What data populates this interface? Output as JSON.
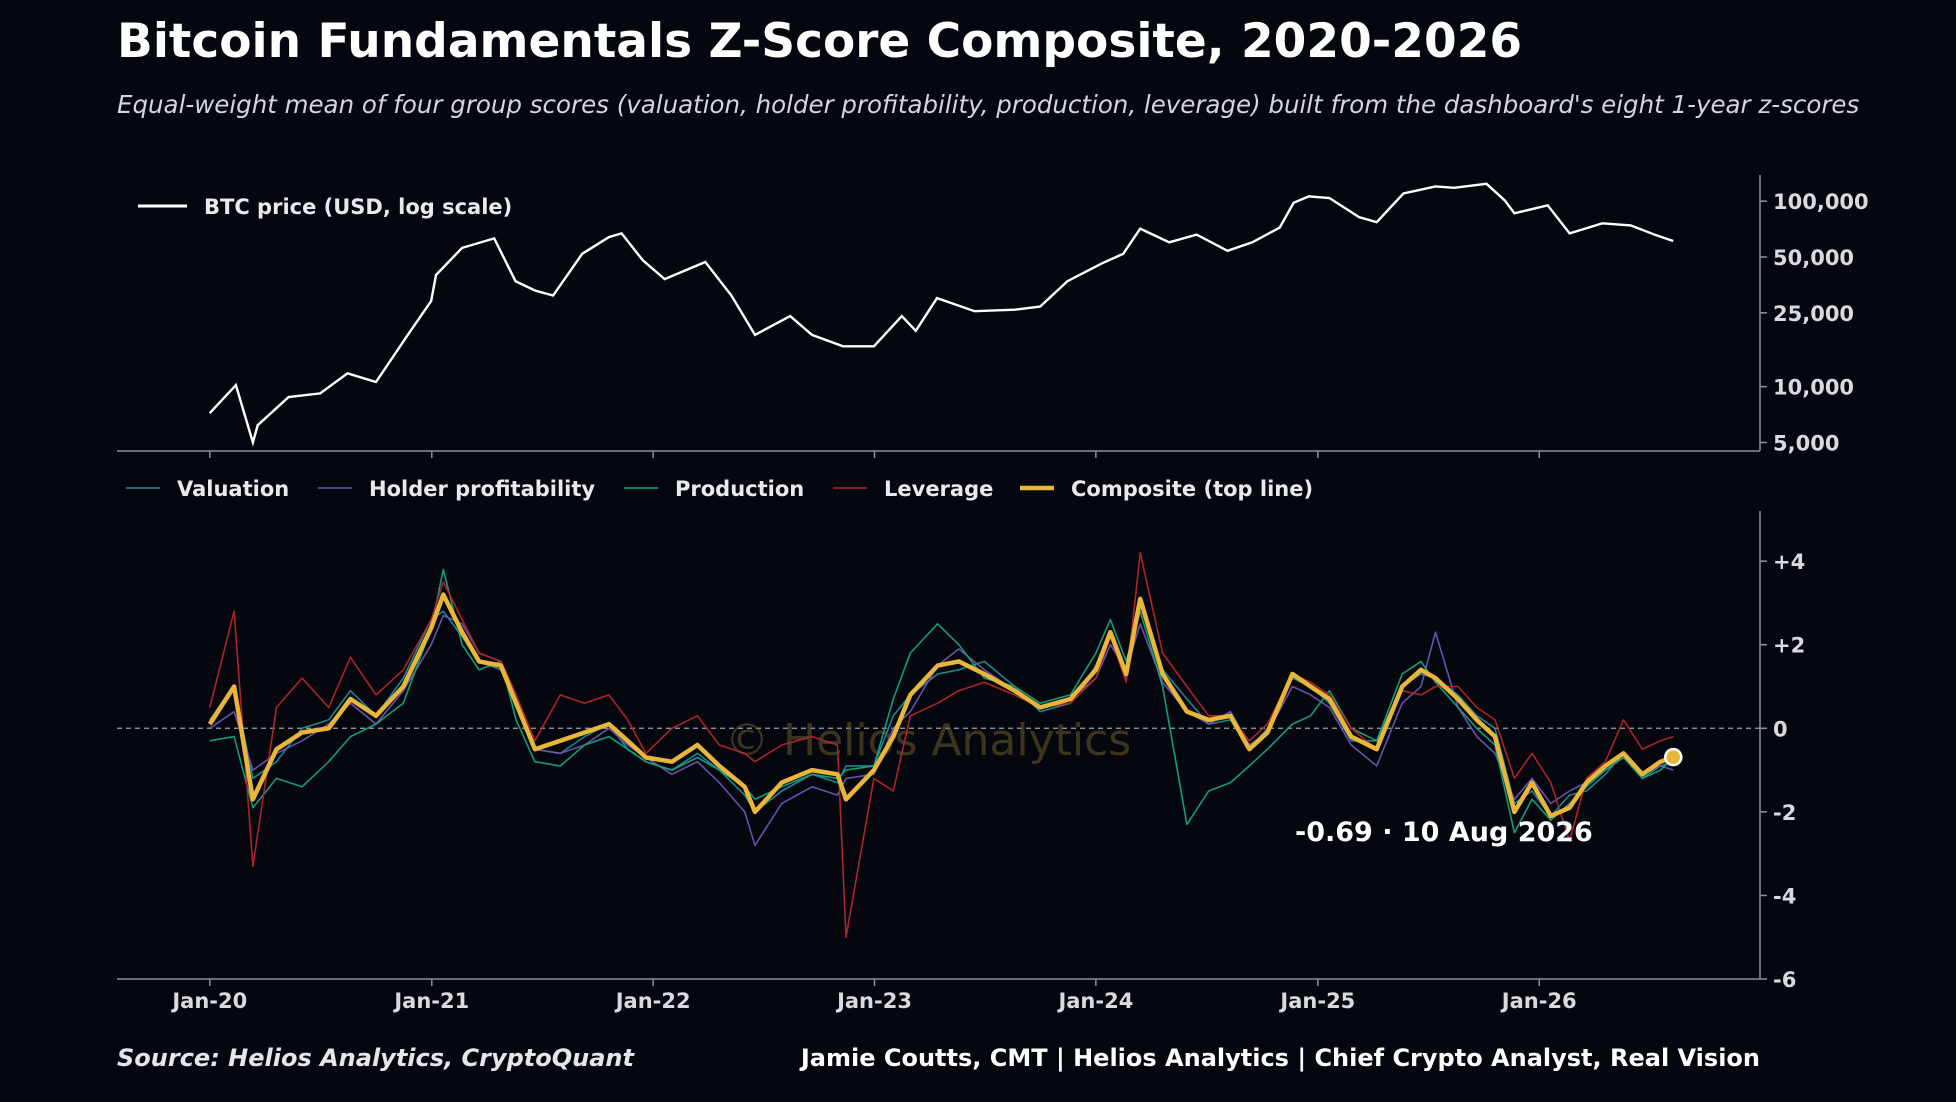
{
  "title": "Bitcoin Fundamentals Z-Score Composite, 2020-2026",
  "subtitle": "Equal-weight mean of four group scores (valuation, holder profitability, production, leverage) built from the dashboard's eight 1-year z-scores",
  "source": "Source: Helios Analytics, CryptoQuant",
  "attribution": "Jamie Coutts, CMT | Helios Analytics | Chief Crypto Analyst, Real Vision",
  "watermark": "© Helios Analytics",
  "colors": {
    "background": "#05070f",
    "price": "#ffffff",
    "valuation": "#1f8c99",
    "holder_profitability": "#6d55b3",
    "production": "#15a37d",
    "leverage": "#b3262c",
    "composite": "#e8b63a"
  },
  "chart_data": [
    {
      "type": "line",
      "panel": "top",
      "yscale": "log",
      "ylim": [
        4500,
        130000
      ],
      "xlim": [
        "2019-08-01",
        "2026-12-31"
      ],
      "yticks": [
        5000,
        10000,
        25000,
        50000,
        100000
      ],
      "ytick_labels": [
        "5,000",
        "10,000",
        "25,000",
        "50,000",
        "100,000"
      ],
      "legend": "top-left",
      "series": [
        {
          "name": "BTC price (USD, log scale)",
          "x": [
            "2020-01-01",
            "2020-02-13",
            "2020-03-12",
            "2020-03-20",
            "2020-05-10",
            "2020-07-01",
            "2020-08-15",
            "2020-10-01",
            "2020-11-20",
            "2020-12-31",
            "2021-01-08",
            "2021-02-20",
            "2021-04-14",
            "2021-05-19",
            "2021-06-20",
            "2021-07-20",
            "2021-09-06",
            "2021-10-20",
            "2021-11-10",
            "2021-12-15",
            "2022-01-20",
            "2022-03-28",
            "2022-05-10",
            "2022-06-18",
            "2022-08-15",
            "2022-09-20",
            "2022-11-10",
            "2022-12-31",
            "2023-02-15",
            "2023-03-10",
            "2023-04-14",
            "2023-06-15",
            "2023-08-20",
            "2023-10-01",
            "2023-11-15",
            "2024-01-10",
            "2024-02-15",
            "2024-03-14",
            "2024-05-01",
            "2024-06-15",
            "2024-08-05",
            "2024-09-15",
            "2024-10-30",
            "2024-11-22",
            "2024-12-17",
            "2025-01-20",
            "2025-03-10",
            "2025-04-08",
            "2025-05-22",
            "2025-07-14",
            "2025-08-14",
            "2025-10-06",
            "2025-11-05",
            "2025-11-21",
            "2026-01-15",
            "2026-02-20",
            "2026-04-15",
            "2026-06-01",
            "2026-07-10",
            "2026-08-10"
          ],
          "y": [
            7200,
            10200,
            5000,
            6200,
            8800,
            9200,
            11800,
            10600,
            18500,
            29000,
            40000,
            56000,
            63000,
            37000,
            33000,
            31000,
            52000,
            64000,
            67000,
            48000,
            38000,
            47000,
            31000,
            19000,
            24000,
            19000,
            16500,
            16500,
            24000,
            20000,
            30000,
            25500,
            26000,
            27000,
            37000,
            46000,
            52000,
            71000,
            60000,
            66000,
            54000,
            60000,
            72000,
            98000,
            106000,
            104000,
            82000,
            77000,
            110000,
            120000,
            118000,
            124000,
            101000,
            86000,
            95000,
            67000,
            76000,
            74000,
            66000,
            61000
          ]
        }
      ]
    },
    {
      "type": "line",
      "panel": "bottom",
      "ylim": [
        -6,
        5.2
      ],
      "xlim": [
        "2019-08-01",
        "2026-12-31"
      ],
      "yticks": [
        -6,
        -4,
        -2,
        0,
        2,
        4
      ],
      "ytick_labels": [
        "-6",
        "-4",
        "-2",
        "0",
        "+2",
        "+4"
      ],
      "xticks": [
        "2020-01-01",
        "2021-01-01",
        "2022-01-01",
        "2023-01-01",
        "2024-01-01",
        "2025-01-01",
        "2026-01-01"
      ],
      "xtick_labels": [
        "Jan-20",
        "Jan-21",
        "Jan-22",
        "Jan-23",
        "Jan-24",
        "Jan-25",
        "Jan-26"
      ],
      "zero_line": true,
      "legend": "top-left",
      "annotation": "-0.69  ·  10 Aug 2026",
      "x": [
        "2020-01-01",
        "2020-02-10",
        "2020-03-12",
        "2020-04-20",
        "2020-06-01",
        "2020-07-15",
        "2020-08-20",
        "2020-10-01",
        "2020-11-15",
        "2020-12-31",
        "2021-01-20",
        "2021-02-20",
        "2021-03-20",
        "2021-04-25",
        "2021-05-20",
        "2021-06-20",
        "2021-08-01",
        "2021-09-10",
        "2021-10-20",
        "2021-11-20",
        "2021-12-20",
        "2022-02-01",
        "2022-03-15",
        "2022-04-20",
        "2022-06-01",
        "2022-06-18",
        "2022-08-01",
        "2022-09-20",
        "2022-11-01",
        "2022-11-15",
        "2022-12-31",
        "2023-02-01",
        "2023-03-01",
        "2023-04-15",
        "2023-05-20",
        "2023-07-01",
        "2023-08-20",
        "2023-10-01",
        "2023-11-20",
        "2024-01-01",
        "2024-01-25",
        "2024-02-20",
        "2024-03-14",
        "2024-04-20",
        "2024-05-30",
        "2024-07-05",
        "2024-08-10",
        "2024-09-10",
        "2024-10-10",
        "2024-11-20",
        "2024-12-20",
        "2025-01-20",
        "2025-02-25",
        "2025-04-08",
        "2025-05-20",
        "2025-06-20",
        "2025-07-14",
        "2025-08-20",
        "2025-09-20",
        "2025-10-20",
        "2025-11-21",
        "2025-12-20",
        "2026-01-20",
        "2026-02-20",
        "2026-03-20",
        "2026-04-20",
        "2026-05-20",
        "2026-06-20",
        "2026-07-20",
        "2026-08-10"
      ],
      "series": [
        {
          "name": "Valuation",
          "values": [
            0.2,
            1.0,
            -1.2,
            -0.8,
            0,
            0.2,
            0.9,
            0.3,
            1.2,
            2.6,
            2.8,
            2.2,
            1.6,
            1.4,
            0.5,
            -0.5,
            -0.6,
            -0.2,
            0.1,
            -0.5,
            -0.8,
            -1.0,
            -0.6,
            -1.0,
            -1.6,
            -2.0,
            -1.5,
            -1.1,
            -1.3,
            -0.9,
            -0.9,
            0.3,
            0.8,
            1.3,
            1.4,
            1.6,
            1.0,
            0.4,
            0.6,
            1.5,
            2.3,
            1.2,
            3.0,
            1.4,
            0.7,
            0.1,
            0.2,
            -0.5,
            0,
            1.2,
            1.0,
            0.6,
            -0.3,
            -0.3,
            1.0,
            1.3,
            1.2,
            0.8,
            0.3,
            0,
            -1.8,
            -1.5,
            -2.1,
            -1.6,
            -1.5,
            -1.1,
            -0.6,
            -1.2,
            -0.9,
            -0.8
          ]
        },
        {
          "name": "Holder profitability",
          "values": [
            0,
            0.4,
            -1.0,
            -0.6,
            -0.3,
            0.1,
            0.6,
            0.1,
            0.9,
            2.0,
            2.7,
            2.5,
            1.8,
            1.6,
            0.8,
            -0.5,
            -0.6,
            -0.4,
            0,
            -0.4,
            -0.7,
            -1.1,
            -0.8,
            -1.3,
            -2.0,
            -2.8,
            -1.8,
            -1.4,
            -1.6,
            -1.2,
            -1.1,
            0,
            0.4,
            1.5,
            1.9,
            1.4,
            0.9,
            0.5,
            0.7,
            1.2,
            2.0,
            1.4,
            2.5,
            1.1,
            0.4,
            0.1,
            0.4,
            -0.4,
            -0.1,
            1.0,
            0.8,
            0.5,
            -0.4,
            -0.9,
            0.6,
            1.0,
            2.3,
            0.5,
            -0.2,
            -0.6,
            -1.7,
            -1.2,
            -1.8,
            -1.5,
            -1.3,
            -1.0,
            -0.7,
            -1.1,
            -0.9,
            -1.0
          ]
        },
        {
          "name": "Production",
          "values": [
            -0.3,
            -0.2,
            -1.9,
            -1.2,
            -1.4,
            -0.8,
            -0.2,
            0.1,
            0.6,
            2.4,
            3.8,
            2.0,
            1.4,
            1.6,
            0.2,
            -0.8,
            -0.9,
            -0.4,
            -0.2,
            -0.5,
            -0.8,
            -1.0,
            -0.7,
            -1.0,
            -1.4,
            -1.7,
            -1.4,
            -1.1,
            -1.2,
            -1.0,
            -0.9,
            0.7,
            1.8,
            2.5,
            2.0,
            1.2,
            1.0,
            0.6,
            0.8,
            1.8,
            2.6,
            1.6,
            2.8,
            1.0,
            -2.3,
            -1.5,
            -1.3,
            -0.9,
            -0.5,
            0.1,
            0.3,
            0.9,
            0,
            -0.3,
            1.3,
            1.6,
            1.1,
            0.5,
            0,
            -0.4,
            -2.5,
            -1.7,
            -2.2,
            -1.8,
            -1.4,
            -1.0,
            -0.7,
            -1.2,
            -1.0,
            -0.7
          ]
        },
        {
          "name": "Leverage",
          "values": [
            0.5,
            2.8,
            -3.3,
            0.5,
            1.2,
            0.5,
            1.7,
            0.8,
            1.4,
            2.6,
            3.5,
            2.6,
            1.8,
            1.6,
            0.8,
            -0.3,
            0.8,
            0.6,
            0.8,
            0.2,
            -0.6,
            0,
            0.3,
            -0.4,
            -0.6,
            -0.8,
            -0.4,
            -0.2,
            -0.4,
            -5.0,
            -1.2,
            -1.5,
            0.3,
            0.6,
            0.9,
            1.1,
            0.8,
            0.5,
            0.6,
            1.2,
            2.2,
            1.1,
            4.2,
            1.8,
            1.0,
            0.3,
            0.3,
            -0.3,
            0.1,
            1.3,
            1.1,
            0.8,
            0,
            -0.5,
            0.9,
            0.8,
            1.0,
            1.0,
            0.5,
            0.2,
            -1.2,
            -0.6,
            -1.3,
            -2.7,
            -1.2,
            -0.8,
            0.2,
            -0.5,
            -0.3,
            -0.2
          ]
        },
        {
          "name": "Composite (top line)",
          "values": [
            0.1,
            1.0,
            -1.7,
            -0.5,
            -0.1,
            0,
            0.7,
            0.3,
            1.0,
            2.4,
            3.2,
            2.3,
            1.6,
            1.5,
            0.6,
            -0.5,
            -0.3,
            -0.1,
            0.1,
            -0.3,
            -0.7,
            -0.8,
            -0.4,
            -0.9,
            -1.4,
            -2.0,
            -1.3,
            -1.0,
            -1.1,
            -1.7,
            -1.0,
            -0.2,
            0.8,
            1.5,
            1.6,
            1.3,
            0.9,
            0.5,
            0.7,
            1.4,
            2.3,
            1.3,
            3.1,
            1.3,
            0.4,
            0.2,
            0.3,
            -0.5,
            -0.1,
            1.3,
            1.0,
            0.7,
            -0.2,
            -0.5,
            1.0,
            1.4,
            1.2,
            0.7,
            0.2,
            -0.2,
            -2.0,
            -1.3,
            -2.1,
            -1.9,
            -1.3,
            -0.9,
            -0.6,
            -1.1,
            -0.8,
            -0.69
          ]
        }
      ]
    }
  ]
}
